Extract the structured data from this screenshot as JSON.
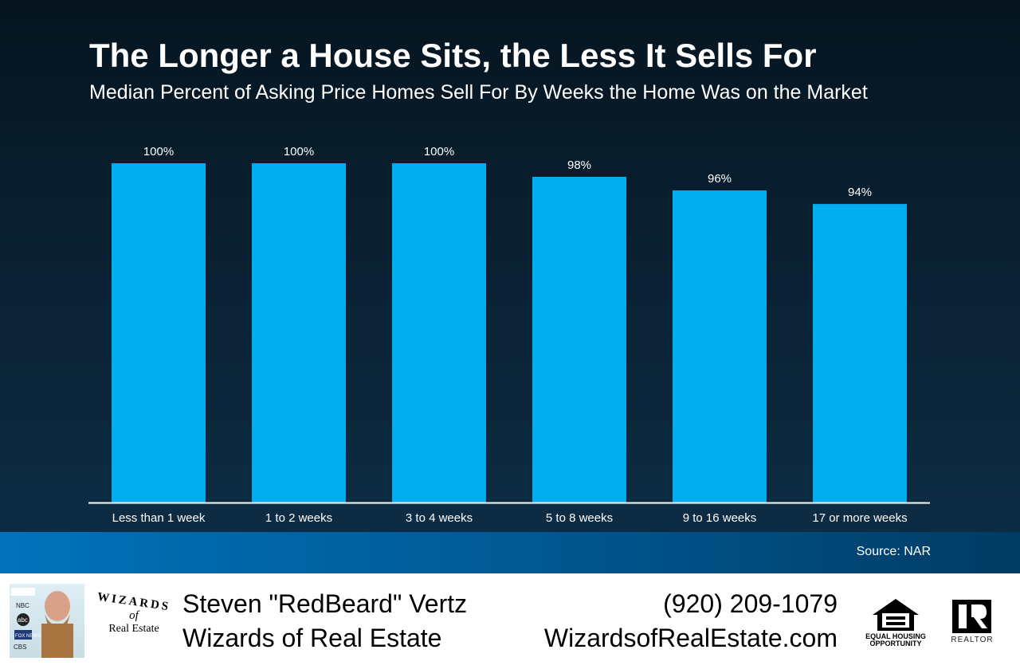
{
  "chart_data": {
    "type": "bar",
    "title": "The Longer a House Sits, the Less It Sells For",
    "subtitle": "Median Percent of Asking Price Homes Sell For By Weeks the Home Was on the Market",
    "categories": [
      "Less than 1 week",
      "1 to 2 weeks",
      "3 to 4 weeks",
      "5 to 8 weeks",
      "9 to 16 weeks",
      "17 or more weeks"
    ],
    "values": [
      100,
      100,
      100,
      98,
      96,
      94
    ],
    "data_labels": [
      "100%",
      "100%",
      "100%",
      "98%",
      "96%",
      "94%"
    ],
    "ylim": [
      50,
      100
    ],
    "grid": false,
    "bar_color": "#00aeef",
    "source": "Source: NAR"
  },
  "footer": {
    "name": "Steven \"RedBeard\" Vertz",
    "company": "Wizards of Real Estate",
    "phone": "(920) 209-1079",
    "website": "WizardsofRealEstate.com",
    "logo_text": {
      "top": "WIZARDS",
      "middle": "of",
      "bottom": "Real Estate"
    },
    "photo_badges": [
      "NBC",
      "abc",
      "FOX NEWS",
      "CBS"
    ],
    "equal_housing": "EQUAL HOUSING OPPORTUNITY",
    "realtor": "REALTOR"
  }
}
